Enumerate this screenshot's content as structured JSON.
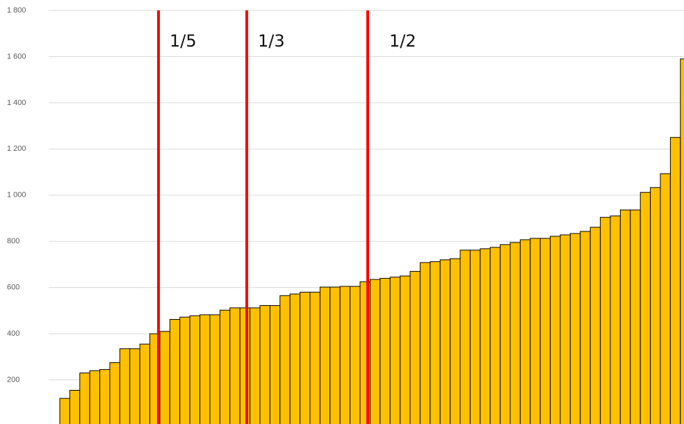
{
  "chart_data": {
    "type": "bar",
    "categories": [
      null,
      null,
      null,
      null,
      null,
      null,
      null,
      null,
      null,
      null,
      null,
      null,
      null,
      null,
      null,
      null,
      null,
      null,
      null,
      null,
      null,
      null,
      null,
      null,
      null,
      null,
      null,
      null,
      null,
      null,
      null,
      null,
      null,
      null,
      null,
      null,
      null,
      null,
      null,
      null,
      null,
      null,
      null,
      null,
      null,
      null,
      null,
      null,
      null,
      null,
      null,
      null,
      null,
      null,
      null,
      null,
      null,
      null,
      null,
      null,
      null,
      null,
      null
    ],
    "values": [
      120,
      155,
      230,
      240,
      245,
      275,
      335,
      335,
      355,
      400,
      410,
      462,
      472,
      478,
      482,
      482,
      502,
      512,
      512,
      512,
      522,
      522,
      565,
      572,
      580,
      580,
      602,
      602,
      605,
      605,
      625,
      635,
      640,
      645,
      650,
      670,
      708,
      712,
      720,
      725,
      762,
      762,
      768,
      774,
      786,
      795,
      807,
      813,
      813,
      822,
      828,
      834,
      843,
      861,
      904,
      910,
      936,
      936,
      1012,
      1033,
      1093,
      1250,
      1590
    ],
    "color": "#ffc000",
    "ylim": [
      0,
      1800
    ],
    "yticks": [
      {
        "value": 200,
        "label": "200"
      },
      {
        "value": 400,
        "label": "400"
      },
      {
        "value": 600,
        "label": "600"
      },
      {
        "value": 800,
        "label": "800"
      },
      {
        "value": 1000,
        "label": "1 000"
      },
      {
        "value": 1200,
        "label": "1 200"
      },
      {
        "value": 1400,
        "label": "1 400"
      },
      {
        "value": 1600,
        "label": "1 600"
      },
      {
        "value": 1800,
        "label": "1 800"
      }
    ],
    "grid": true,
    "annotations": [
      "1/5",
      "1/3",
      "1/2"
    ]
  }
}
